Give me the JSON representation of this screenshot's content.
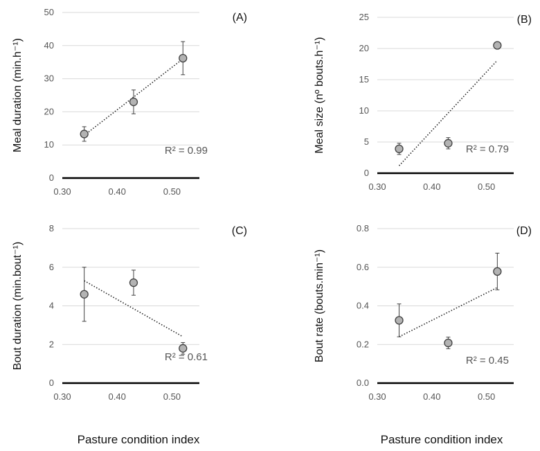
{
  "shared_xlabel": "Pasture condition index",
  "chart_data": [
    {
      "type": "scatter",
      "panel": "(A)",
      "ylabel": "Meal duration (min.h⁻¹)",
      "x": [
        0.34,
        0.43,
        0.52
      ],
      "y": [
        13.3,
        23.0,
        36.2
      ],
      "err": [
        2.2,
        3.6,
        5.0
      ],
      "xlim": [
        0.3,
        0.55
      ],
      "ylim": [
        0,
        50
      ],
      "xticks": [
        "0.30",
        "0.40",
        "0.50"
      ],
      "xtick_values": [
        0.3,
        0.4,
        0.5
      ],
      "yticks": [
        "0",
        "10",
        "20",
        "30",
        "40",
        "50"
      ],
      "ytick_values": [
        0,
        10,
        20,
        30,
        40,
        50
      ],
      "trendline": [
        [
          0.34,
          12.9
        ],
        [
          0.52,
          36.0
        ]
      ],
      "r2": "R² = 0.99",
      "grid": true
    },
    {
      "type": "scatter",
      "panel": "(B)",
      "ylabel": "Meal size (nº bouts.h⁻¹)",
      "x": [
        0.34,
        0.43,
        0.52
      ],
      "y": [
        3.9,
        4.8,
        20.5
      ],
      "err": [
        0.9,
        0.9,
        0
      ],
      "xlim": [
        0.3,
        0.55
      ],
      "ylim": [
        0,
        25
      ],
      "xticks": [
        "0.30",
        "0.40",
        "0.50"
      ],
      "xtick_values": [
        0.3,
        0.4,
        0.5
      ],
      "yticks": [
        "0",
        "5",
        "10",
        "15",
        "20",
        "25"
      ],
      "ytick_values": [
        0,
        5,
        10,
        15,
        20,
        25
      ],
      "trendline": [
        [
          0.34,
          1.2
        ],
        [
          0.52,
          18.1
        ]
      ],
      "r2": "R² = 0.79",
      "grid": true
    },
    {
      "type": "scatter",
      "panel": "(C)",
      "ylabel": "Bout duration (min.bout⁻¹)",
      "x": [
        0.34,
        0.43,
        0.52
      ],
      "y": [
        4.6,
        5.2,
        1.8
      ],
      "err": [
        1.4,
        0.65,
        0.3
      ],
      "xlim": [
        0.3,
        0.55
      ],
      "ylim": [
        0,
        8
      ],
      "xticks": [
        "0.30",
        "0.40",
        "0.50"
      ],
      "xtick_values": [
        0.3,
        0.4,
        0.5
      ],
      "yticks": [
        "0",
        "2",
        "4",
        "6",
        "8"
      ],
      "ytick_values": [
        0,
        2,
        4,
        6,
        8
      ],
      "trendline": [
        [
          0.34,
          5.3
        ],
        [
          0.52,
          2.4
        ]
      ],
      "r2": "R² = 0.61",
      "grid": true
    },
    {
      "type": "scatter",
      "panel": "(D)",
      "ylabel": "Bout rate  (bouts.min⁻¹)",
      "x": [
        0.34,
        0.43,
        0.52
      ],
      "y": [
        0.325,
        0.208,
        0.578
      ],
      "err": [
        0.085,
        0.03,
        0.095
      ],
      "xlim": [
        0.3,
        0.55
      ],
      "ylim": [
        0,
        0.8
      ],
      "xticks": [
        "0.30",
        "0.40",
        "0.50"
      ],
      "xtick_values": [
        0.3,
        0.4,
        0.5
      ],
      "yticks": [
        "0.0",
        "0.2",
        "0.4",
        "0.6",
        "0.8"
      ],
      "ytick_values": [
        0,
        0.2,
        0.4,
        0.6,
        0.8
      ],
      "trendline": [
        [
          0.34,
          0.24
        ],
        [
          0.52,
          0.495
        ]
      ],
      "r2": "R² = 0.45",
      "grid": true
    }
  ],
  "style": {
    "marker_fill": "#b3b3b3",
    "marker_stroke": "#404040",
    "grid_color": "#d9d9d9",
    "axis_color": "#000000",
    "trend_color": "#222222"
  }
}
